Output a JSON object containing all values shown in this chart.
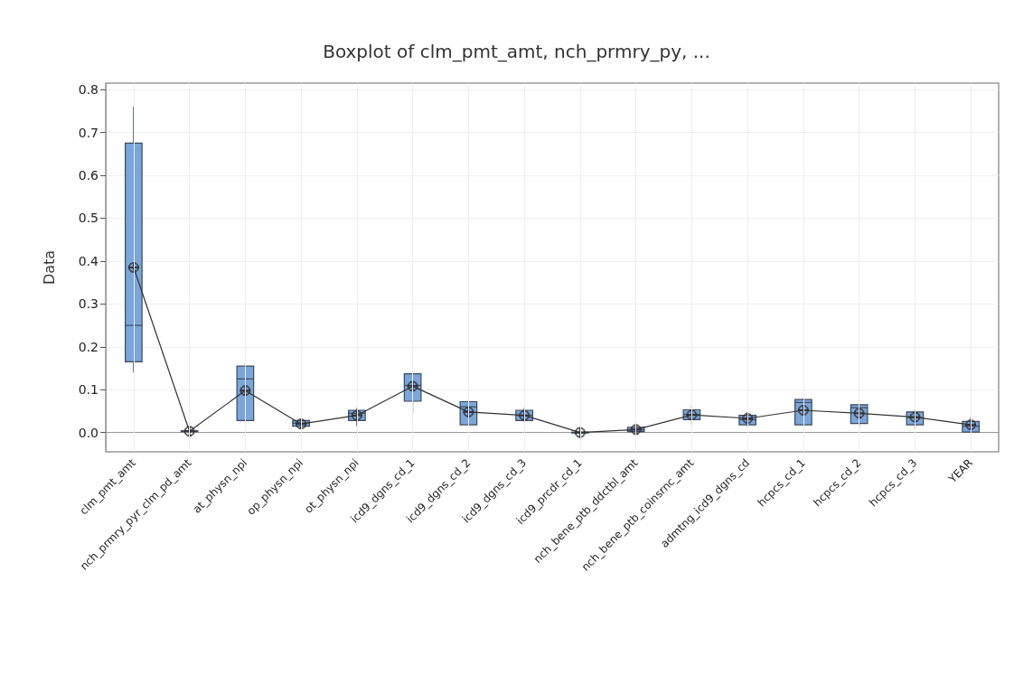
{
  "chart_data": {
    "type": "box",
    "title": "Boxplot of clm_pmt_amt, nch_prmry_py, ...",
    "ylabel": "Data",
    "categories": [
      "clm_pmt_amt",
      "nch_prmry_pyr_clm_pd_amt",
      "at_physn_npi",
      "op_physn_npi",
      "ot_physn_npi",
      "icd9_dgns_cd_1",
      "icd9_dgns_cd_2",
      "icd9_dgns_cd_3",
      "icd9_prcdr_cd_1",
      "nch_bene_ptb_ddctbl_amt",
      "nch_bene_ptb_coinsrnc_amt",
      "admtng_icd9_dgns_cd",
      "hcpcs_cd_1",
      "hcpcs_cd_2",
      "hcpcs_cd_3",
      "YEAR"
    ],
    "ylim": [
      -0.045,
      0.815
    ],
    "yticks": [
      {
        "value": 0,
        "label": "0.0"
      },
      0.1,
      0.2,
      0.3,
      0.4,
      0.5,
      0.6,
      0.7,
      0.8
    ],
    "grid": true,
    "series": [
      {
        "type": "box",
        "color": "#7aa6dc",
        "boxes": [
          {
            "low": 0.14,
            "q1": 0.165,
            "median": 0.25,
            "q3": 0.675,
            "high": 0.76
          },
          {
            "low": 0,
            "q1": 0.002,
            "median": 0.003,
            "q3": 0.004,
            "high": 0.005
          },
          {
            "low": 0.025,
            "q1": 0.028,
            "median": 0.125,
            "q3": 0.155,
            "high": 0.16
          },
          {
            "low": 0.012,
            "q1": 0.015,
            "median": 0.022,
            "q3": 0.028,
            "high": 0.033
          },
          {
            "low": 0.015,
            "q1": 0.028,
            "median": 0.045,
            "q3": 0.052,
            "high": 0.058
          },
          {
            "low": 0.045,
            "q1": 0.073,
            "median": 0.11,
            "q3": 0.137,
            "high": 0.14
          },
          {
            "low": 0.018,
            "q1": 0.018,
            "median": 0.06,
            "q3": 0.072,
            "high": 0.075
          },
          {
            "low": 0.025,
            "q1": 0.028,
            "median": 0.04,
            "q3": 0.052,
            "high": 0.058
          },
          {
            "low": -0.002,
            "q1": -0.001,
            "median": 0,
            "q3": 0.001,
            "high": 0.002
          },
          {
            "low": 0,
            "q1": 0.002,
            "median": 0.006,
            "q3": 0.012,
            "high": 0.015
          },
          {
            "low": 0.018,
            "q1": 0.03,
            "median": 0.042,
            "q3": 0.053,
            "high": 0.063
          },
          {
            "low": 0.014,
            "q1": 0.018,
            "median": 0.03,
            "q3": 0.04,
            "high": 0.049
          },
          {
            "low": 0.018,
            "q1": 0.018,
            "median": 0.07,
            "q3": 0.077,
            "high": 0.08
          },
          {
            "low": 0.012,
            "q1": 0.021,
            "median": 0.058,
            "q3": 0.065,
            "high": 0.065
          },
          {
            "low": 0.009,
            "q1": 0.018,
            "median": 0.035,
            "q3": 0.048,
            "high": 0.053
          },
          {
            "low": 0,
            "q1": 0.001,
            "median": 0.015,
            "q3": 0.026,
            "high": 0.036
          }
        ]
      },
      {
        "type": "line",
        "color": "#333333",
        "marker": "circle",
        "values": [
          0.385,
          0.003,
          0.098,
          0.02,
          0.04,
          0.108,
          0.048,
          0.04,
          0,
          0.007,
          0.041,
          0.033,
          0.052,
          0.045,
          0.036,
          0.018
        ]
      }
    ]
  }
}
